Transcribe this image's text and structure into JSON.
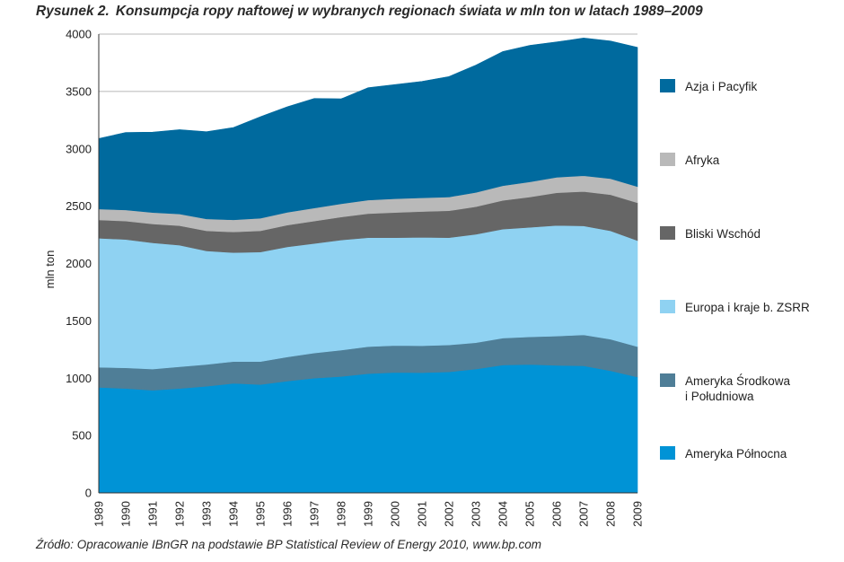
{
  "figure": {
    "label": "Rysunek 2.",
    "title": "Konsumpcja ropy naftowej w wybranych regionach świata w mln ton w latach 1989–2009",
    "source": "Źródło: Opracowanie IBnGR na podstawie BP Statistical Review of Energy 2010, www.bp.com"
  },
  "chart_data": {
    "type": "area",
    "stacked": true,
    "title": "Konsumpcja ropy naftowej w wybranych regionach świata w mln ton w latach 1989–2009",
    "xlabel": "",
    "ylabel": "mln ton",
    "ylim": [
      0,
      4000
    ],
    "yticks": [
      0,
      500,
      1000,
      1500,
      2000,
      2500,
      3000,
      3500,
      4000
    ],
    "x": [
      "1989",
      "1990",
      "1991",
      "1992",
      "1993",
      "1994",
      "1995",
      "1996",
      "1997",
      "1998",
      "1999",
      "2000",
      "2001",
      "2002",
      "2003",
      "2004",
      "2005",
      "2006",
      "2007",
      "2008",
      "2009"
    ],
    "legend_position": "right",
    "series": [
      {
        "name": "Ameryka Północna",
        "color": "#0093d6",
        "values": [
          920,
          910,
          895,
          910,
          930,
          955,
          945,
          975,
          1000,
          1015,
          1040,
          1050,
          1048,
          1055,
          1080,
          1115,
          1120,
          1112,
          1108,
          1065,
          1010
        ]
      },
      {
        "name": "Ameryka Środkowa i Południowa",
        "color": "#4f7e97",
        "values": [
          175,
          180,
          185,
          190,
          190,
          190,
          200,
          210,
          220,
          230,
          235,
          235,
          235,
          235,
          230,
          235,
          240,
          255,
          270,
          275,
          265
        ]
      },
      {
        "name": "Europa i kraje b. ZSRR",
        "color": "#8fd2f2",
        "values": [
          1125,
          1120,
          1100,
          1060,
          990,
          950,
          955,
          960,
          955,
          960,
          950,
          940,
          945,
          935,
          945,
          950,
          955,
          965,
          950,
          945,
          925
        ]
      },
      {
        "name": "Bliski Wschód",
        "color": "#666666",
        "values": [
          160,
          160,
          165,
          170,
          175,
          180,
          185,
          190,
          195,
          200,
          210,
          220,
          225,
          235,
          240,
          250,
          265,
          285,
          300,
          315,
          330
        ]
      },
      {
        "name": "Afryka",
        "color": "#b9b9b9",
        "values": [
          95,
          97,
          100,
          102,
          104,
          106,
          110,
          112,
          114,
          116,
          118,
          120,
          120,
          120,
          125,
          128,
          132,
          135,
          138,
          140,
          140
        ]
      },
      {
        "name": "Azja i Pacyfik",
        "color": "#006a9e",
        "values": [
          615,
          675,
          700,
          735,
          760,
          805,
          885,
          920,
          955,
          915,
          980,
          995,
          1015,
          1050,
          1110,
          1170,
          1190,
          1180,
          1200,
          1200,
          1215
        ]
      }
    ],
    "legend": [
      "Azja i Pacyfik",
      "Afryka",
      "Bliski Wschód",
      "Europa i kraje b. ZSRR",
      "Ameryka Środkowa\ni Południowa",
      "Ameryka Północna"
    ]
  }
}
